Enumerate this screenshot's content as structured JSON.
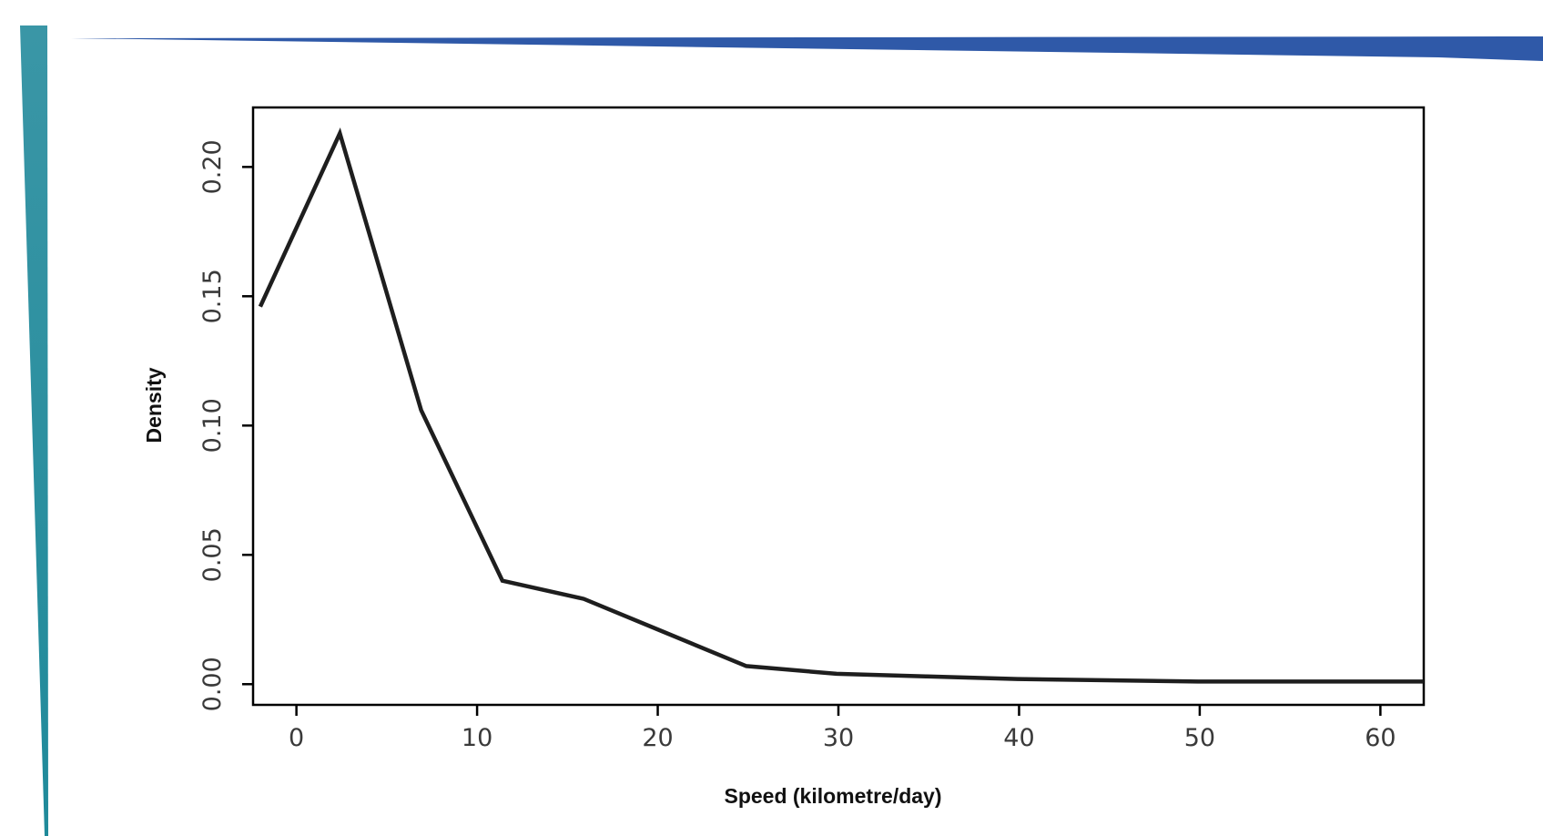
{
  "colors": {
    "left_bar_top": "#3a96a6",
    "left_bar_bottom": "#1f8a9a",
    "top_bar": "#2f59a8",
    "line": "#1e1e1e",
    "frame": "#000000"
  },
  "chart_data": {
    "type": "line",
    "title": "",
    "xlabel": "Speed (kilometre/day)",
    "ylabel": "Density",
    "xlim": [
      -2.4,
      62.4
    ],
    "ylim": [
      -0.008,
      0.223
    ],
    "xticks": [
      0,
      10,
      20,
      30,
      40,
      50,
      60
    ],
    "xtick_labels": [
      "0",
      "10",
      "20",
      "30",
      "40",
      "50",
      "60"
    ],
    "yticks": [
      0.0,
      0.05,
      0.1,
      0.15,
      0.2
    ],
    "ytick_labels": [
      "0.00",
      "0.05",
      "0.10",
      "0.15",
      "0.20"
    ],
    "grid": false,
    "legend": "none",
    "series": [
      {
        "x": [
          -2.0,
          2.4,
          6.9,
          11.4,
          15.9,
          20.4,
          24.9,
          29.9,
          34.9,
          39.9,
          44.9,
          49.9,
          54.9,
          59.9,
          62.4
        ],
        "y": [
          0.146,
          0.213,
          0.106,
          0.04,
          0.033,
          0.02,
          0.007,
          0.004,
          0.003,
          0.002,
          0.0015,
          0.001,
          0.001,
          0.001,
          0.001
        ]
      }
    ]
  }
}
